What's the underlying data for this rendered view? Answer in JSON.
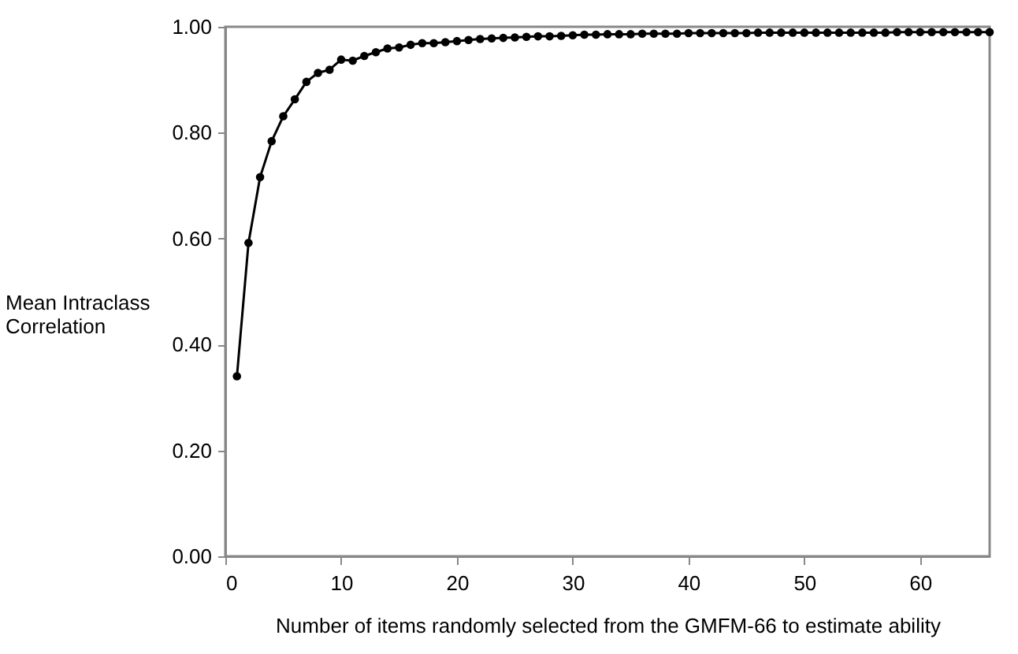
{
  "chart_data": {
    "type": "line",
    "xlabel": "Number of items randomly selected from the GMFM-66 to estimate ability",
    "ylabel": "Mean Intraclass Correlation",
    "x": [
      1,
      2,
      3,
      4,
      5,
      6,
      7,
      8,
      9,
      10,
      11,
      12,
      13,
      14,
      15,
      16,
      17,
      18,
      19,
      20,
      21,
      22,
      23,
      24,
      25,
      26,
      27,
      28,
      29,
      30,
      31,
      32,
      33,
      34,
      35,
      36,
      37,
      38,
      39,
      40,
      41,
      42,
      43,
      44,
      45,
      46,
      47,
      48,
      49,
      50,
      51,
      52,
      53,
      54,
      55,
      56,
      57,
      58,
      59,
      60,
      61,
      62,
      63,
      64,
      65,
      66
    ],
    "series": [
      {
        "color": "#000000",
        "values": [
          0.34,
          0.592,
          0.716,
          0.784,
          0.831,
          0.863,
          0.896,
          0.913,
          0.919,
          0.938,
          0.936,
          0.945,
          0.952,
          0.959,
          0.961,
          0.966,
          0.969,
          0.969,
          0.971,
          0.973,
          0.975,
          0.977,
          0.978,
          0.979,
          0.98,
          0.981,
          0.982,
          0.982,
          0.983,
          0.984,
          0.985,
          0.985,
          0.986,
          0.986,
          0.986,
          0.987,
          0.987,
          0.987,
          0.987,
          0.988,
          0.988,
          0.988,
          0.988,
          0.988,
          0.988,
          0.989,
          0.989,
          0.989,
          0.989,
          0.989,
          0.989,
          0.989,
          0.989,
          0.989,
          0.989,
          0.989,
          0.989,
          0.99,
          0.99,
          0.99,
          0.99,
          0.99,
          0.99,
          0.99,
          0.99,
          0.99
        ]
      }
    ],
    "xlim": [
      0,
      66
    ],
    "xticks": [
      0,
      10,
      20,
      30,
      40,
      50,
      60
    ],
    "ylim": [
      0,
      1
    ],
    "yticks": [
      {
        "value": 0,
        "label": "0.00"
      },
      {
        "value": 0.2,
        "label": "0.20"
      },
      {
        "value": 0.4,
        "label": "0.40"
      },
      {
        "value": 0.6,
        "label": "0.60"
      },
      {
        "value": 0.8,
        "label": "0.80"
      },
      {
        "value": 1,
        "label": "1.00"
      }
    ],
    "marker": "circle",
    "line_style": "solid",
    "grid": false
  }
}
